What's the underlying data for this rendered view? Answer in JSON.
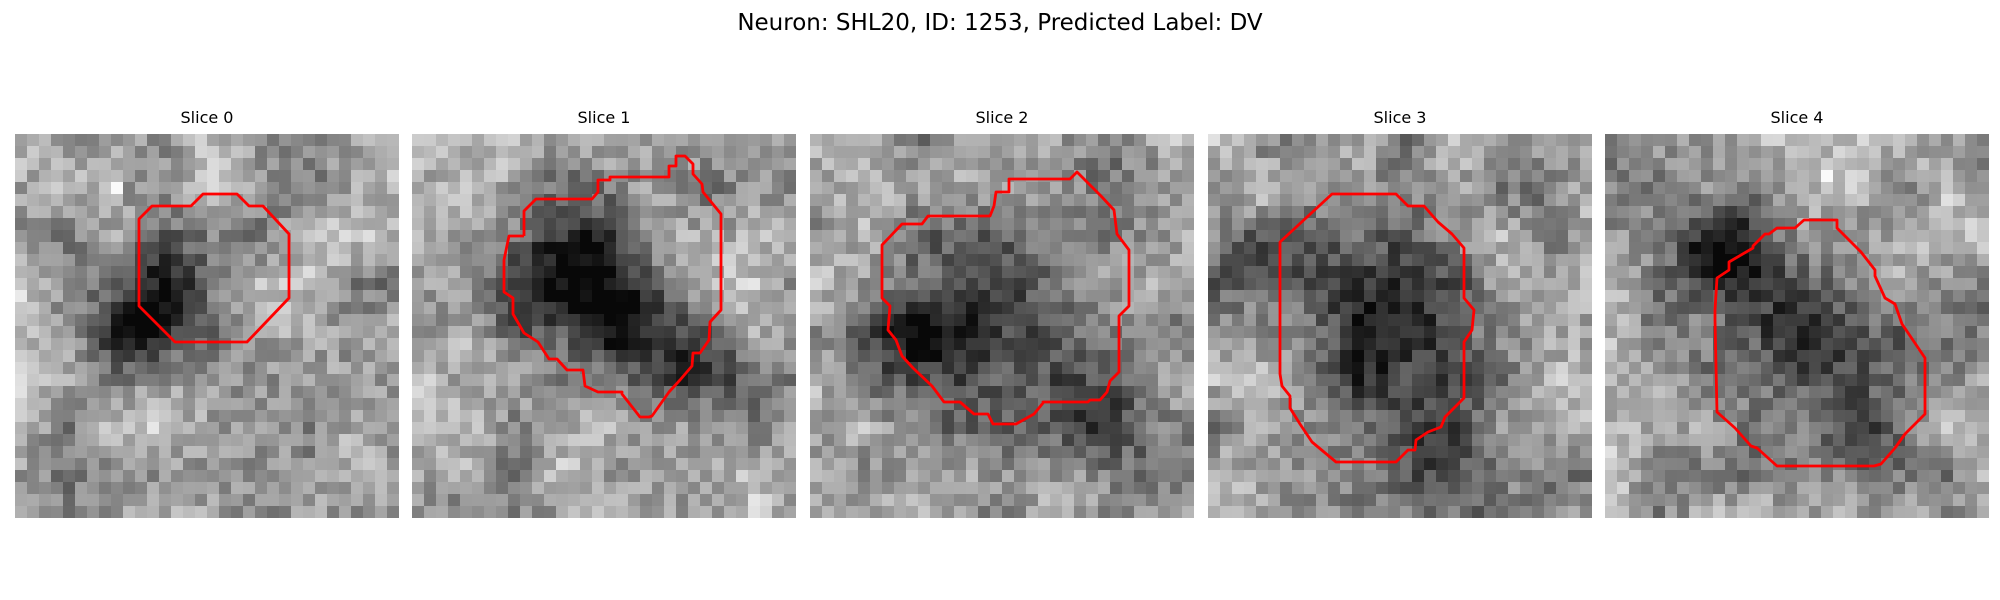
{
  "figure": {
    "title": "Neuron: SHL20, ID: 1253, Predicted Label: DV"
  },
  "colors": {
    "contour": "#ff0000",
    "background": "#ffffff",
    "pixel_map": "grayscale"
  },
  "panels": [
    {
      "title": "Slice 0"
    },
    {
      "title": "Slice 1"
    },
    {
      "title": "Slice 2"
    },
    {
      "title": "Slice 3"
    },
    {
      "title": "Slice 4"
    }
  ]
}
